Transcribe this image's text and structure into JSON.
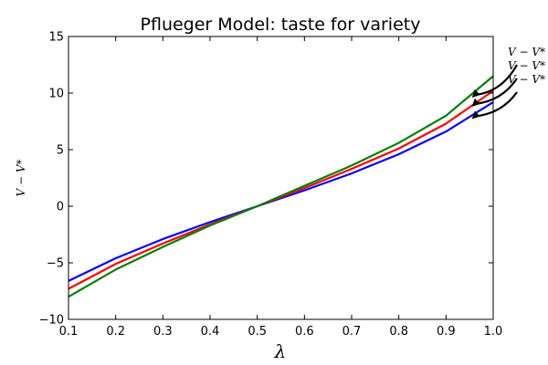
{
  "chart_data": {
    "type": "line",
    "title": "Pflueger Model: taste for variety",
    "xlabel": "λ",
    "ylabel": "V − V*",
    "xlim": [
      0.1,
      1.0
    ],
    "ylim": [
      -10,
      15
    ],
    "xticks": [
      0.1,
      0.2,
      0.3,
      0.4,
      0.5,
      0.6,
      0.7,
      0.8,
      0.9,
      1.0
    ],
    "xtick_labels": [
      "0.1",
      "0.2",
      "0.3",
      "0.4",
      "0.5",
      "0.6",
      "0.7",
      "0.8",
      "0.9",
      "1.0"
    ],
    "yticks": [
      -10,
      -5,
      0,
      5,
      10,
      15
    ],
    "ytick_labels": [
      "−10",
      "−5",
      "0",
      "5",
      "10",
      "15"
    ],
    "grid": false,
    "x": [
      0.1,
      0.2,
      0.3,
      0.4,
      0.5,
      0.6,
      0.7,
      0.8,
      0.9,
      1.0
    ],
    "series": [
      {
        "color": "#0000ff",
        "values": [
          -6.6,
          -4.6,
          -2.9,
          -1.4,
          0.0,
          1.4,
          2.9,
          4.6,
          6.6,
          9.2
        ]
      },
      {
        "color": "#ff0000",
        "values": [
          -7.3,
          -5.1,
          -3.3,
          -1.6,
          0.0,
          1.6,
          3.3,
          5.1,
          7.3,
          10.2
        ]
      },
      {
        "color": "#008000",
        "values": [
          -8.0,
          -5.6,
          -3.6,
          -1.7,
          0.0,
          1.8,
          3.6,
          5.6,
          8.0,
          11.5
        ]
      }
    ],
    "annotations": [
      {
        "text": "V − V*",
        "x": 0.955,
        "y": 9.6
      },
      {
        "text": "V − V*",
        "x": 0.955,
        "y": 8.8
      },
      {
        "text": "V − V*",
        "x": 0.955,
        "y": 7.7
      }
    ]
  }
}
